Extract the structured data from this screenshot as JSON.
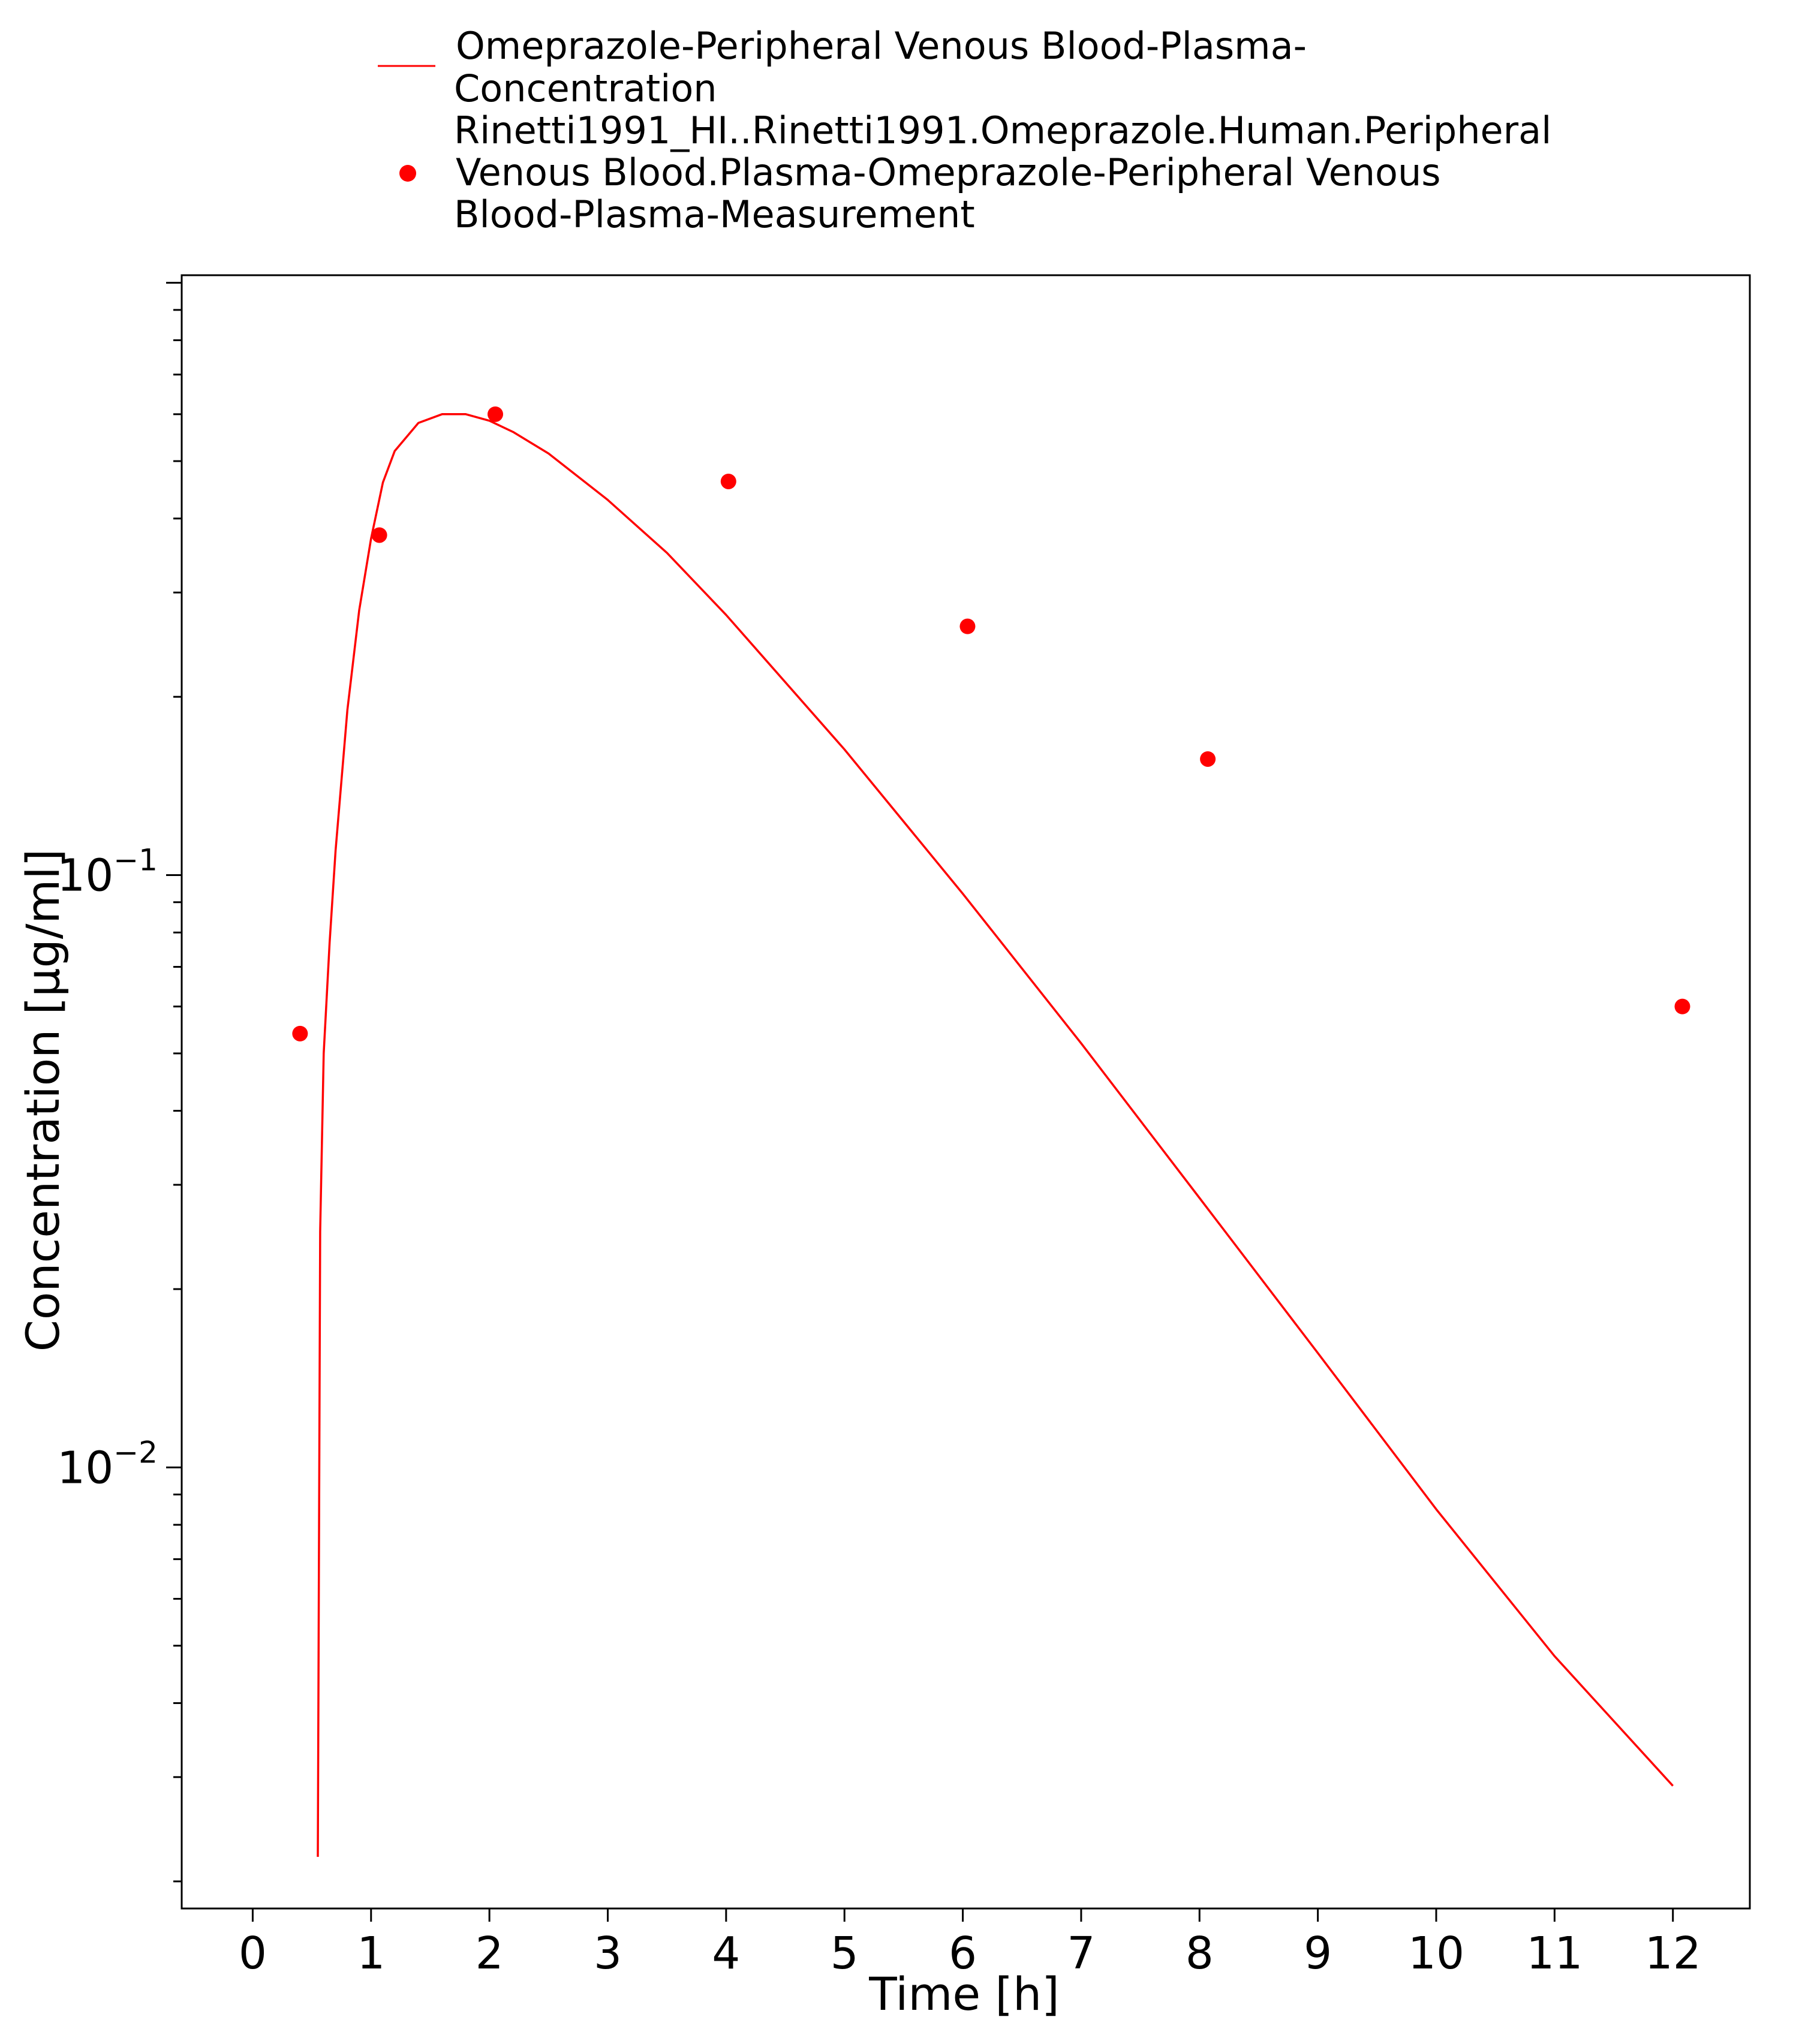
{
  "chart_data": {
    "type": "line",
    "xlabel": "Time [h]",
    "ylabel": "Concentration [µg/ml]",
    "x_ticks": [
      "0",
      "1",
      "2",
      "3",
      "4",
      "5",
      "6",
      "7",
      "8",
      "9",
      "10",
      "11",
      "12"
    ],
    "y_ticks": [
      {
        "value": 0.1,
        "base": "10",
        "exp": "−1"
      },
      {
        "value": 0.01,
        "base": "10",
        "exp": "−2"
      }
    ],
    "xlim": [
      -0.6,
      12.65
    ],
    "ylim": [
      0.0018,
      1.03
    ],
    "y_scale": "log",
    "grid": false,
    "legend_position": "top",
    "series": [
      {
        "name": "Omeprazole-Peripheral Venous Blood-Plasma-Concentration",
        "style": "line",
        "color": "#ff0000",
        "x": [
          0.55,
          0.57,
          0.6,
          0.65,
          0.7,
          0.8,
          0.9,
          1.0,
          1.1,
          1.2,
          1.4,
          1.6,
          1.7,
          1.8,
          2.0,
          2.2,
          2.5,
          3.0,
          3.5,
          4.0,
          5.0,
          6.0,
          7.0,
          8.0,
          9.0,
          10.0,
          11.0,
          12.0
        ],
        "y": [
          0.0022,
          0.025,
          0.05,
          0.077,
          0.11,
          0.19,
          0.28,
          0.37,
          0.46,
          0.52,
          0.58,
          0.6,
          0.6,
          0.6,
          0.585,
          0.56,
          0.515,
          0.43,
          0.35,
          0.275,
          0.163,
          0.093,
          0.052,
          0.0285,
          0.0156,
          0.0085,
          0.0048,
          0.0029
        ]
      },
      {
        "name": "Rinetti1991_HI..Rinetti1991.Omeprazole.Human.Peripheral Venous Blood.Plasma-Omeprazole-Peripheral Venous Blood-Plasma-Measurement",
        "style": "scatter",
        "color": "#ff0000",
        "x": [
          0.4,
          1.07,
          2.05,
          4.02,
          6.04,
          8.07,
          12.08
        ],
        "y": [
          0.054,
          0.375,
          0.6,
          0.462,
          0.263,
          0.157,
          0.06
        ]
      }
    ]
  },
  "legend": {
    "line_label_1": "Omeprazole-Peripheral Venous Blood-Plasma-",
    "line_label_2": "Concentration",
    "scatter_label_1": "Rinetti1991_HI..Rinetti1991.Omeprazole.Human.Peripheral",
    "scatter_label_2": "Venous Blood.Plasma-Omeprazole-Peripheral Venous",
    "scatter_label_3": "Blood-Plasma-Measurement"
  }
}
